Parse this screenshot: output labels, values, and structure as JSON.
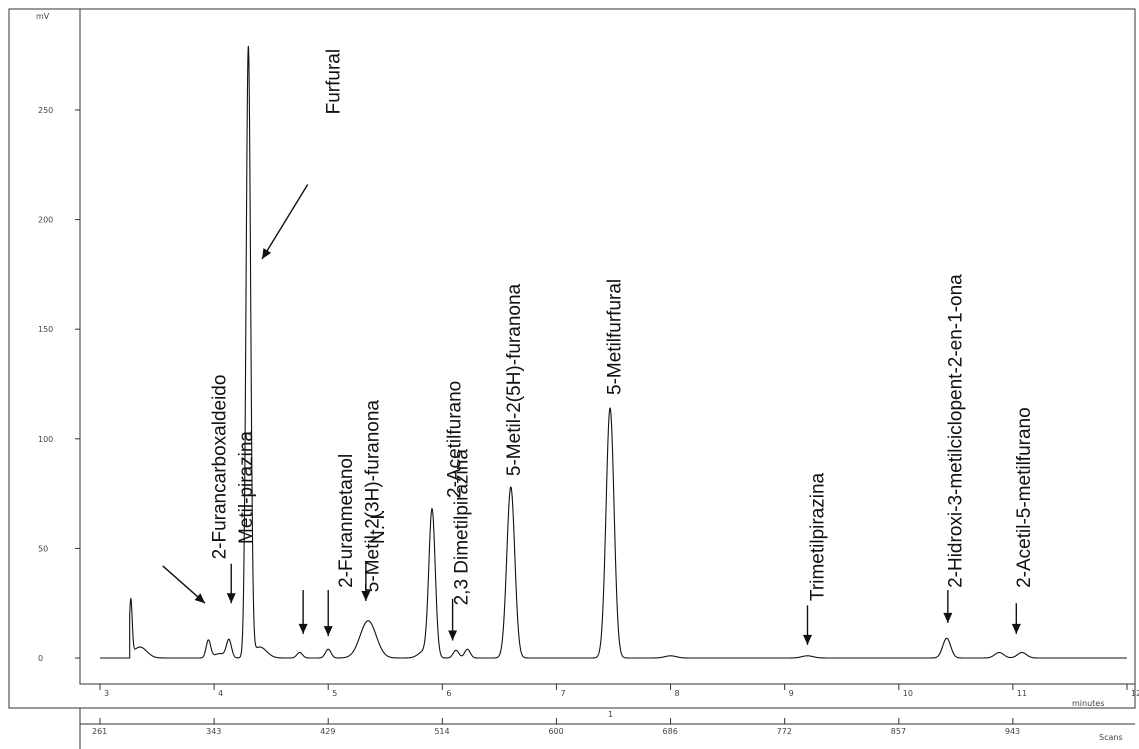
{
  "chart_data": {
    "type": "line",
    "title": "",
    "ylabel": "mV",
    "xlabel": "minutes",
    "x2label": "Scans",
    "xlim": [
      3,
      12
    ],
    "ylim": [
      0,
      280
    ],
    "grid": false,
    "y_ticks": [
      0,
      50,
      100,
      150,
      200,
      250
    ],
    "y_tick_labels": [
      "0",
      "50",
      "100",
      "150",
      "200",
      "250"
    ],
    "x_ticks": [
      3,
      4,
      5,
      6,
      7,
      8,
      9,
      10,
      11,
      12
    ],
    "x_tick_labels": [
      "3",
      "4",
      "5",
      "6",
      "7",
      "8",
      "9",
      "10",
      "11",
      "12"
    ],
    "scan_ticks": [
      3,
      4,
      5,
      6,
      7,
      8,
      9,
      10,
      11
    ],
    "scan_tick_labels": [
      "261",
      "343",
      "429",
      "514",
      "600",
      "686",
      "772",
      "857",
      "943"
    ],
    "axis_marker": "1",
    "baseline": 0,
    "start_x": 3.26,
    "series": [
      {
        "peaks": [
          {
            "x": 3.27,
            "height": 25,
            "width": 0.012
          },
          {
            "x": 3.35,
            "height": 5,
            "width": 0.06
          },
          {
            "x": 3.95,
            "height": 8,
            "width": 0.02
          },
          {
            "x": 4.05,
            "height": 2,
            "width": 0.05
          },
          {
            "x": 4.13,
            "height": 8,
            "width": 0.022
          },
          {
            "x": 4.3,
            "height": 278,
            "width": 0.02
          },
          {
            "x": 4.4,
            "height": 5,
            "width": 0.06
          },
          {
            "x": 4.75,
            "height": 2.5,
            "width": 0.025
          },
          {
            "x": 5.0,
            "height": 4,
            "width": 0.025
          },
          {
            "x": 5.35,
            "height": 17,
            "width": 0.07
          },
          {
            "x": 5.91,
            "height": 67,
            "width": 0.028
          },
          {
            "x": 5.84,
            "height": 3,
            "width": 0.05
          },
          {
            "x": 6.12,
            "height": 3.5,
            "width": 0.025
          },
          {
            "x": 6.22,
            "height": 4,
            "width": 0.025
          },
          {
            "x": 6.6,
            "height": 78,
            "width": 0.035
          },
          {
            "x": 7.47,
            "height": 114,
            "width": 0.035
          },
          {
            "x": 8.0,
            "height": 1,
            "width": 0.05
          },
          {
            "x": 9.2,
            "height": 1,
            "width": 0.05
          },
          {
            "x": 10.42,
            "height": 9,
            "width": 0.035
          },
          {
            "x": 10.88,
            "height": 2.5,
            "width": 0.04
          },
          {
            "x": 11.08,
            "height": 2.5,
            "width": 0.04
          }
        ]
      }
    ],
    "annotations": [
      {
        "text": "2-Furancarboxaldeido",
        "label_x": 4.1,
        "label_y": 45,
        "arrow": {
          "x1": 3.55,
          "y1": 42,
          "x2": 3.92,
          "y2": 25
        }
      },
      {
        "text": "Metil-pirazina",
        "label_x": 4.33,
        "label_y": 52,
        "arrow": {
          "x1": 4.15,
          "y1": 43,
          "x2": 4.15,
          "y2": 25
        }
      },
      {
        "text": "Furfural",
        "label_x": 5.1,
        "label_y": 248,
        "arrow": {
          "x1": 4.82,
          "y1": 216,
          "x2": 4.42,
          "y2": 182
        }
      },
      {
        "text": "2-Furanmetanol",
        "label_x": 5.21,
        "label_y": 32,
        "arrow": {
          "x1": 4.78,
          "y1": 31,
          "x2": 4.78,
          "y2": 11
        }
      },
      {
        "text": "5-Metil-2(3H)-furanona",
        "label_x": 5.44,
        "label_y": 30,
        "arrow": {
          "x1": 5.0,
          "y1": 31,
          "x2": 5.0,
          "y2": 10
        }
      },
      {
        "text": "N. I.",
        "label_x": 5.49,
        "label_y": 52,
        "arrow": {
          "x1": 5.33,
          "y1": 44,
          "x2": 5.33,
          "y2": 26
        }
      },
      {
        "text": "2-Acetilfurano",
        "label_x": 6.16,
        "label_y": 73,
        "arrow": null
      },
      {
        "text": "2,3 Dimetilpirazina",
        "label_x": 6.22,
        "label_y": 24,
        "arrow": {
          "x1": 6.09,
          "y1": 27,
          "x2": 6.09,
          "y2": 8
        }
      },
      {
        "text": "5-Metil-2(5H)-furanona",
        "label_x": 6.68,
        "label_y": 83,
        "arrow": null
      },
      {
        "text": "5-Metilfurfural",
        "label_x": 7.56,
        "label_y": 120,
        "arrow": null
      },
      {
        "text": "Trimetilpirazina",
        "label_x": 9.34,
        "label_y": 26,
        "arrow": {
          "x1": 9.2,
          "y1": 24,
          "x2": 9.2,
          "y2": 6
        }
      },
      {
        "text": "2-Hidroxi-3-metilciclopent-2-en-1-ona",
        "label_x": 10.55,
        "label_y": 32,
        "arrow": {
          "x1": 10.43,
          "y1": 31,
          "x2": 10.43,
          "y2": 16
        }
      },
      {
        "text": "2-Acetil-5-metilfurano",
        "label_x": 11.15,
        "label_y": 32,
        "arrow": {
          "x1": 11.03,
          "y1": 25,
          "x2": 11.03,
          "y2": 11
        }
      }
    ]
  }
}
